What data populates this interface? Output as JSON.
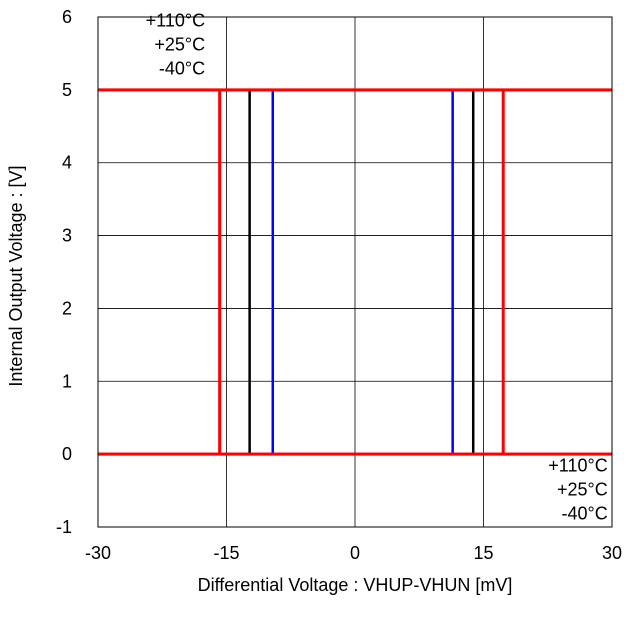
{
  "chart_data": {
    "type": "line",
    "title": "",
    "xlabel": "Differential Voltage : VHUP-VHUN [mV]",
    "ylabel": "Internal Output Voltage : [V]",
    "xlim": [
      -30,
      30
    ],
    "ylim": [
      -1,
      6
    ],
    "xticks": [
      -30,
      -15,
      0,
      15,
      30
    ],
    "yticks": [
      -1,
      0,
      1,
      2,
      3,
      4,
      5,
      6
    ],
    "xtick_labels": [
      "-30",
      "-15",
      "0",
      "15",
      "30"
    ],
    "ytick_labels": [
      "-1",
      "0",
      "1",
      "2",
      "3",
      "4",
      "5",
      "6"
    ],
    "grid": true,
    "legend": "none",
    "series": [
      {
        "name": "-40°C",
        "color": "#0000ff",
        "low_threshold": -9.6,
        "high_threshold": 11.4,
        "low_level": 0,
        "high_level": 5
      },
      {
        "name": "+25°C",
        "color": "#000000",
        "low_threshold": -12.3,
        "high_threshold": 13.8,
        "low_level": 0,
        "high_level": 5
      },
      {
        "name": "+110°C",
        "color": "#ff0000",
        "low_threshold": -15.8,
        "high_threshold": 17.3,
        "low_level": 0,
        "high_level": 5
      }
    ],
    "annotations": [
      {
        "lines": [
          "+110°C",
          "+25°C",
          "-40°C"
        ],
        "at_x": -17.5,
        "at_y": 5.35,
        "anchor": "end"
      },
      {
        "lines": [
          "+110°C",
          "+25°C",
          "-40°C"
        ],
        "at_x": 29.5,
        "at_y": -0.35,
        "anchor": "end"
      }
    ]
  }
}
